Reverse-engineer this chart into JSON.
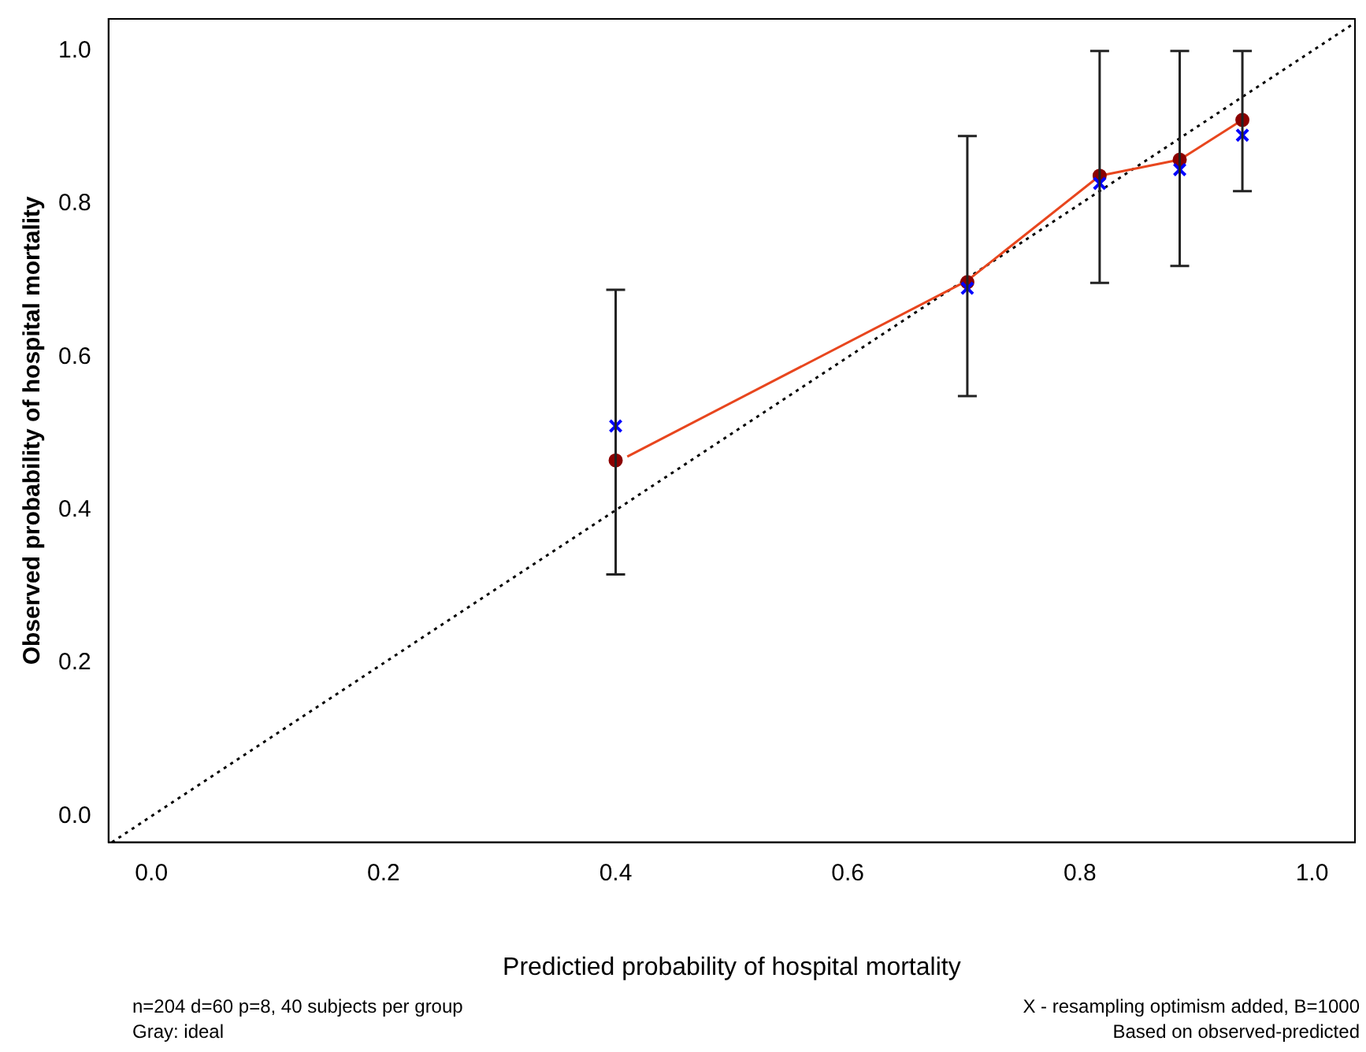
{
  "chart_data": {
    "type": "scatter",
    "xlabel": "Predictied probability of hospital mortality",
    "ylabel": "Observed probability of hospital mortality",
    "xlim": [
      -0.037,
      1.037
    ],
    "ylim": [
      -0.034,
      1.042
    ],
    "xticks": [
      {
        "value": 0,
        "label": "0.0"
      },
      {
        "value": 0.2,
        "label": "0.2"
      },
      {
        "value": 0.4,
        "label": "0.4"
      },
      {
        "value": 0.6,
        "label": "0.6"
      },
      {
        "value": 0.8,
        "label": "0.8"
      },
      {
        "value": 1,
        "label": "1.0"
      }
    ],
    "yticks": [
      {
        "value": 0,
        "label": "0.0"
      },
      {
        "value": 0.2,
        "label": "0.2"
      },
      {
        "value": 0.4,
        "label": "0.4"
      },
      {
        "value": 0.6,
        "label": "0.6"
      },
      {
        "value": 0.8,
        "label": "0.8"
      },
      {
        "value": 1,
        "label": "1.0"
      }
    ],
    "grid": false,
    "legend": false,
    "series": [
      {
        "type": "line",
        "line_style": "dotted",
        "marker": "none",
        "color": "#000000",
        "x": [
          -0.034,
          1.037
        ],
        "values": [
          -0.034,
          1.037
        ]
      },
      {
        "type": "line",
        "line_style": "solid",
        "marker": "none",
        "color": "#e8461e",
        "x": [
          0.41,
          0.703,
          0.817,
          0.886,
          0.94
        ],
        "values": [
          0.47,
          0.7,
          0.837,
          0.858,
          0.91
        ]
      },
      {
        "type": "scatter",
        "marker": "circle",
        "color": "#8b0000",
        "x": [
          0.4,
          0.703,
          0.817,
          0.886,
          0.94
        ],
        "values": [
          0.465,
          0.698,
          0.837,
          0.858,
          0.91
        ],
        "errors": [
          [
            0.316,
            0.688
          ],
          [
            0.549,
            0.889
          ],
          [
            0.697,
            1.0
          ],
          [
            0.719,
            1.0
          ],
          [
            0.817,
            1.0
          ]
        ]
      },
      {
        "type": "scatter",
        "marker": "cross",
        "color": "#0000ff",
        "x": [
          0.4,
          0.703,
          0.817,
          0.886,
          0.94
        ],
        "values": [
          0.51,
          0.69,
          0.827,
          0.845,
          0.89
        ]
      }
    ],
    "annotations": [
      "n=204 d=60 p=8, 40 subjects per group",
      "Gray: ideal",
      "X - resampling optimism added, B=1000",
      "Based on observed-predicted"
    ]
  }
}
